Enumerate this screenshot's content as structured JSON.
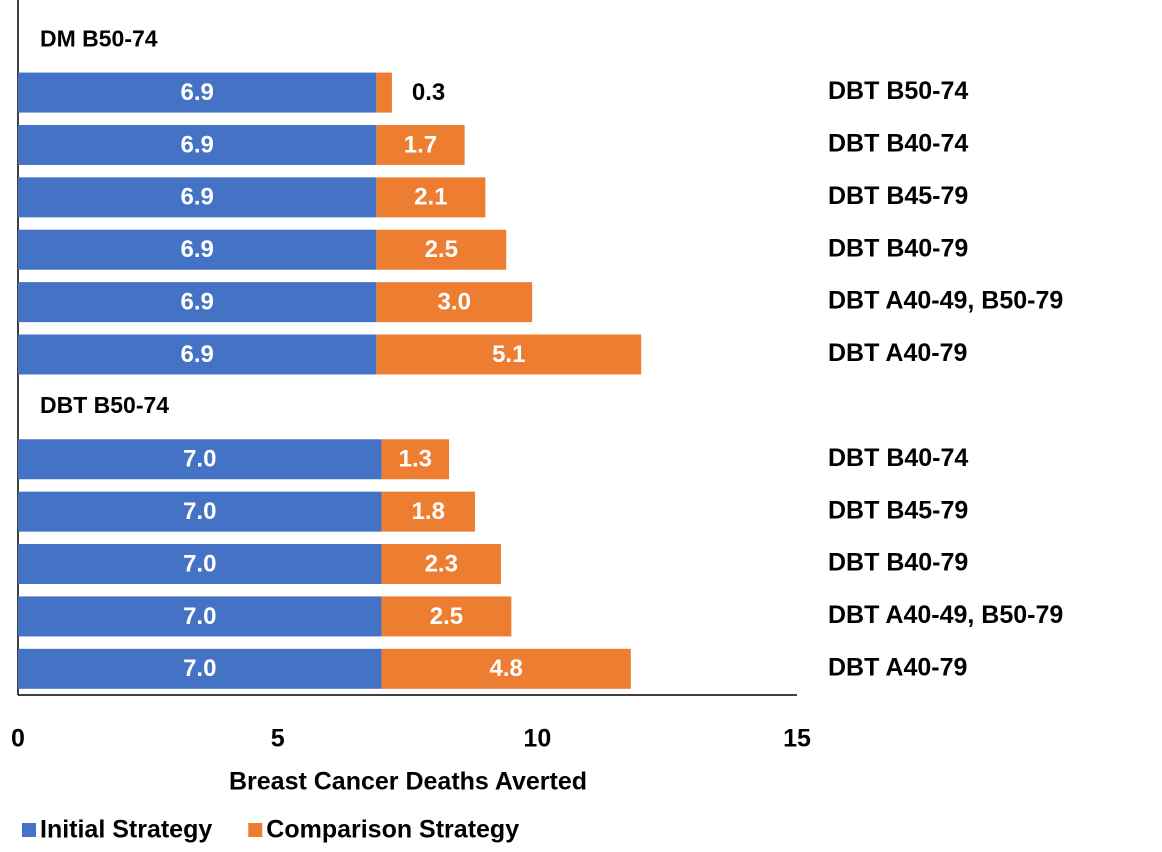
{
  "chart_data": {
    "type": "stacked-bar-horizontal",
    "x_label": "Breast Cancer Deaths Averted",
    "categories": [
      null,
      "DBT B50-74",
      "DBT B40-74",
      "DBT B45-79",
      "DBT B40-79",
      "DBT A40-49, B50-79",
      "DBT A40-79",
      null,
      "DBT B40-74",
      "DBT B45-79",
      "DBT B40-79",
      "DBT A40-49, B50-79",
      "DBT A40-79"
    ],
    "group_labels": [
      "DM B50-74",
      null,
      null,
      null,
      null,
      null,
      null,
      "DBT B50-74",
      null,
      null,
      null,
      null,
      null
    ],
    "series": [
      {
        "name": "Initial Strategy",
        "color": "#4472c4",
        "values": [
          null,
          6.9,
          6.9,
          6.9,
          6.9,
          6.9,
          6.9,
          null,
          7.0,
          7.0,
          7.0,
          7.0,
          7.0
        ],
        "value_labels": [
          null,
          "6.9",
          "6.9",
          "6.9",
          "6.9",
          "6.9",
          "6.9",
          null,
          "7.0",
          "7.0",
          "7.0",
          "7.0",
          "7.0"
        ]
      },
      {
        "name": "Comparison Strategy",
        "color": "#ed7d31",
        "values": [
          null,
          0.3,
          1.7,
          2.1,
          2.5,
          3.0,
          5.1,
          null,
          1.3,
          1.8,
          2.3,
          2.5,
          4.8
        ],
        "value_labels": [
          null,
          "0.3",
          "1.7",
          "2.1",
          "2.5",
          "3.0",
          "5.1",
          null,
          "1.3",
          "1.8",
          "2.3",
          "2.5",
          "4.8"
        ]
      }
    ],
    "xlim": [
      0,
      15
    ],
    "xticks": [
      0,
      5,
      10,
      15
    ],
    "legend": "bottom"
  }
}
